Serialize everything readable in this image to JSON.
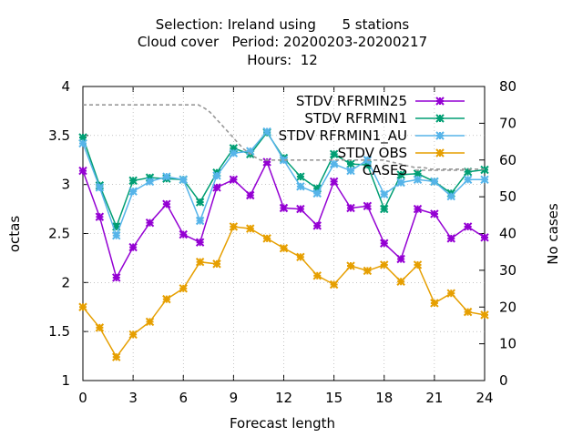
{
  "chart_data": {
    "type": "line",
    "title_lines": [
      "Selection: Ireland using      5 stations",
      "Cloud cover   Period: 20200203-20200217",
      "Hours:  12"
    ],
    "xlabel": "Forecast length",
    "ylabel": "octas",
    "y2label": "No cases",
    "xlim": [
      0,
      24
    ],
    "ylim": [
      1,
      4
    ],
    "y2lim": [
      0,
      80
    ],
    "xticks": [
      0,
      3,
      6,
      9,
      12,
      15,
      18,
      21,
      24
    ],
    "yticks": [
      1,
      1.5,
      2,
      2.5,
      3,
      3.5,
      4
    ],
    "y2ticks": [
      0,
      10,
      20,
      30,
      40,
      50,
      60,
      70,
      80
    ],
    "legend_position": "top-right",
    "x": [
      0,
      1,
      2,
      3,
      4,
      5,
      6,
      7,
      8,
      9,
      10,
      11,
      12,
      13,
      14,
      15,
      16,
      17,
      18,
      19,
      20,
      21,
      22,
      23,
      24
    ],
    "series": [
      {
        "name": "STDV RFRMIN25",
        "color": "#9400d3",
        "axis": "y",
        "values": [
          3.14,
          2.67,
          2.05,
          2.36,
          2.61,
          2.8,
          2.49,
          2.41,
          2.97,
          3.05,
          2.89,
          3.23,
          2.76,
          2.75,
          2.58,
          3.03,
          2.76,
          2.78,
          2.4,
          2.24,
          2.75,
          2.7,
          2.45,
          2.57,
          2.46
        ]
      },
      {
        "name": "STDV RFRMIN1",
        "color": "#009e73",
        "axis": "y",
        "values": [
          3.48,
          2.99,
          2.57,
          3.04,
          3.07,
          3.06,
          3.05,
          2.82,
          3.12,
          3.37,
          3.31,
          3.53,
          3.27,
          3.08,
          2.96,
          3.31,
          3.21,
          3.2,
          2.75,
          3.1,
          3.11,
          3.03,
          2.91,
          3.13,
          3.15
        ]
      },
      {
        "name": "STDV RFRMIN1_AU",
        "color": "#56b4e9",
        "axis": "y",
        "values": [
          3.42,
          2.97,
          2.48,
          2.93,
          3.03,
          3.08,
          3.05,
          2.63,
          3.09,
          3.32,
          3.34,
          3.54,
          3.25,
          2.98,
          2.91,
          3.21,
          3.14,
          3.25,
          2.9,
          3.02,
          3.05,
          3.03,
          2.88,
          3.05,
          3.05
        ]
      },
      {
        "name": "STDV OBS",
        "color": "#e69f00",
        "axis": "y",
        "values": [
          1.75,
          1.54,
          1.24,
          1.47,
          1.6,
          1.83,
          1.94,
          2.21,
          2.19,
          2.57,
          2.55,
          2.45,
          2.35,
          2.26,
          2.07,
          1.98,
          2.17,
          2.12,
          2.18,
          2.01,
          2.18,
          1.79,
          1.89,
          1.7,
          1.67
        ]
      },
      {
        "name": "CASES",
        "color": "#999999",
        "axis": "y2",
        "dashed": true,
        "x": [
          0,
          6.9,
          7.3,
          7.6,
          8,
          8.4,
          8.8,
          9.2,
          9.6,
          9.9,
          10.2,
          10.6,
          11,
          12,
          17.9,
          18.4,
          18.9,
          19.3,
          19.8,
          20.3,
          20.8,
          21.2,
          24
        ],
        "values": [
          75,
          75,
          74,
          73,
          71,
          69,
          67,
          65,
          63,
          62,
          61,
          60,
          60,
          60,
          60,
          59.5,
          59,
          58.5,
          58,
          58,
          57.5,
          57.5,
          57.5
        ]
      }
    ]
  }
}
